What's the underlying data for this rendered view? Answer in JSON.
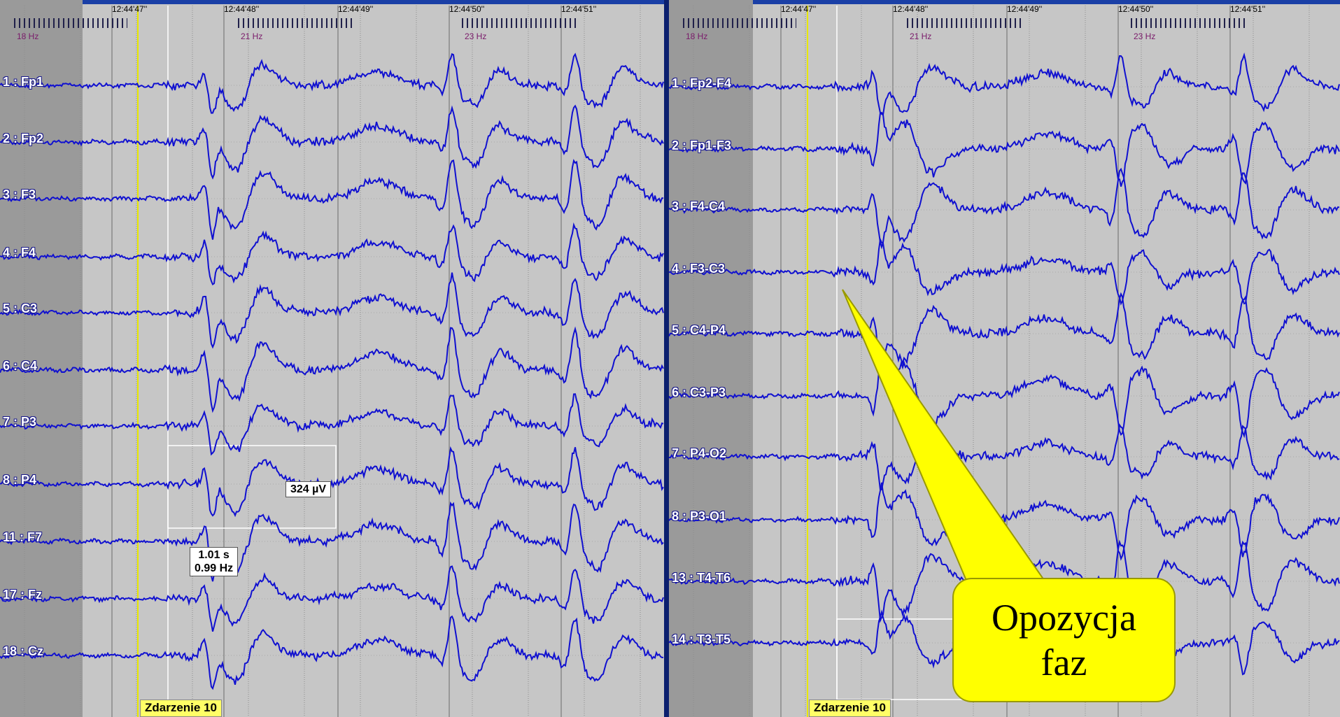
{
  "left_panel": {
    "time_labels": [
      "12:44'47''",
      "12:44'48''",
      "12:44'49''",
      "12:44'50''",
      "12:44'51''"
    ],
    "freq_labels": [
      "18 Hz",
      "21 Hz",
      "23 Hz"
    ],
    "channels": [
      "1 : Fp1",
      "2 : Fp2",
      "3 : F3",
      "4 : F4",
      "5 : C3",
      "6 : C4",
      "7 : P3",
      "8 : P4",
      "11 : F7",
      "17 : Fz",
      "18 : Cz"
    ],
    "event_label": "Zdarzenie 10",
    "scale_marks": [
      "0.5",
      "1"
    ],
    "amplitude": "324 µV",
    "duration": "1.01 s",
    "frequency": "0.99 Hz"
  },
  "right_panel": {
    "time_labels": [
      "12:44'47''",
      "12:44'48''",
      "12:44'49''",
      "12:44'50''",
      "12:44'51''"
    ],
    "freq_labels": [
      "18 Hz",
      "21 Hz",
      "23 Hz"
    ],
    "channels": [
      "1 : Fp2-F4",
      "2 : Fp1-F3",
      "3 : F4-C4",
      "4 : F3-C3",
      "5 : C4-P4",
      "6 : C3-P3",
      "7 : P4-O2",
      "8 : P3-O1",
      "13 : T4-T6",
      "14 : T3-T5"
    ],
    "event_label": "Zdarzenie 10",
    "scale_marks": [
      "0.5",
      "1"
    ]
  },
  "callout": {
    "line1": "Opozycja",
    "line2": "faz"
  },
  "colors": {
    "background": "#c6c6c6",
    "trace": "#1010d0",
    "event_marker": "#e8e800",
    "callout_fill": "#ffff00"
  }
}
